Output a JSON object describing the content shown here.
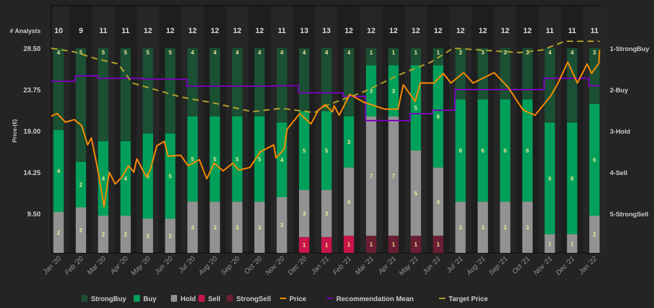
{
  "chart_data": {
    "type": "bar",
    "analysts_label": "# Analysts",
    "ylabel": "Price-(€)",
    "ylim": [
      5,
      29.5
    ],
    "y_ticks": [
      "28.50",
      "23.75",
      "19.00",
      "14.25",
      "9.50"
    ],
    "y_tick_values": [
      28.5,
      23.75,
      19,
      14.25,
      9.5
    ],
    "right_ticks": [
      "1-StrongBuy",
      "2-Buy",
      "3-Hold",
      "4-Sell",
      "5-StrongSell"
    ],
    "categories": [
      "Jan '20",
      "Feb '20",
      "Mar '20",
      "Apr '20",
      "May '20",
      "Jun '20",
      "Jul '20",
      "Aug '20",
      "Sep '20",
      "Oct '20",
      "Nov '20",
      "Dec '20",
      "Jan '21",
      "Feb '21",
      "Mar '21",
      "Apr '21",
      "May '21",
      "Jun '21",
      "Jul '21",
      "Aug '21",
      "Sep '21",
      "Oct '21",
      "Nov '21",
      "Dec '21",
      "Jan '22"
    ],
    "analysts": [
      10,
      9,
      11,
      11,
      12,
      12,
      12,
      12,
      12,
      12,
      11,
      13,
      13,
      12,
      12,
      12,
      12,
      12,
      12,
      12,
      12,
      12,
      11,
      11,
      11
    ],
    "series": [
      {
        "name": "StrongBuy",
        "color": "#1b5034",
        "values": [
          4,
          5,
          5,
          5,
          5,
          5,
          4,
          4,
          4,
          4,
          4,
          4,
          4,
          4,
          1,
          1,
          1,
          1,
          3,
          3,
          3,
          3,
          4,
          4,
          3
        ]
      },
      {
        "name": "Buy",
        "color": "#00a05a",
        "values": [
          4,
          2,
          4,
          4,
          5,
          5,
          5,
          5,
          5,
          5,
          4,
          5,
          5,
          3,
          3,
          3,
          5,
          6,
          6,
          6,
          6,
          6,
          6,
          6,
          6
        ]
      },
      {
        "name": "Hold",
        "color": "#929292",
        "values": [
          2,
          2,
          2,
          2,
          2,
          2,
          3,
          3,
          3,
          3,
          3,
          3,
          3,
          4,
          7,
          7,
          5,
          4,
          3,
          3,
          3,
          3,
          1,
          1,
          2
        ]
      },
      {
        "name": "Sell",
        "color": "#c8154a",
        "values": [
          0,
          0,
          0,
          0,
          0,
          0,
          0,
          0,
          0,
          0,
          0,
          1,
          1,
          1,
          0,
          0,
          0,
          0,
          0,
          0,
          0,
          0,
          0,
          0,
          0
        ]
      },
      {
        "name": "StrongSell",
        "color": "#6b1e32",
        "values": [
          0,
          0,
          0,
          0,
          0,
          0,
          0,
          0,
          0,
          0,
          0,
          0,
          0,
          0,
          1,
          1,
          1,
          1,
          0,
          0,
          0,
          0,
          0,
          0,
          0
        ]
      }
    ],
    "price": {
      "name": "Price",
      "color": "#ff8c00",
      "points": [
        [
          "2020-01-01",
          20.7
        ],
        [
          "2020-01-09",
          21.0
        ],
        [
          "2020-01-20",
          20.0
        ],
        [
          "2020-02-02",
          20.3
        ],
        [
          "2020-02-12",
          19.6
        ],
        [
          "2020-02-20",
          17.4
        ],
        [
          "2020-02-25",
          18.2
        ],
        [
          "2020-03-03",
          14.8
        ],
        [
          "2020-03-12",
          10.3
        ],
        [
          "2020-03-19",
          14.25
        ],
        [
          "2020-03-27",
          12.9
        ],
        [
          "2020-04-06",
          13.7
        ],
        [
          "2020-04-15",
          15.0
        ],
        [
          "2020-04-22",
          14.25
        ],
        [
          "2020-04-26",
          15.8
        ],
        [
          "2020-05-09",
          13.7
        ],
        [
          "2020-05-14",
          14.5
        ],
        [
          "2020-05-23",
          17.3
        ],
        [
          "2020-06-03",
          17.8
        ],
        [
          "2020-06-08",
          16.1
        ],
        [
          "2020-06-25",
          16.2
        ],
        [
          "2020-07-05",
          15.0
        ],
        [
          "2020-07-20",
          15.7
        ],
        [
          "2020-07-30",
          13.5
        ],
        [
          "2020-08-10",
          15.3
        ],
        [
          "2020-08-22",
          14.4
        ],
        [
          "2020-09-05",
          15.3
        ],
        [
          "2020-09-13",
          14.5
        ],
        [
          "2020-09-28",
          14.8
        ],
        [
          "2020-10-12",
          16.6
        ],
        [
          "2020-10-30",
          17.4
        ],
        [
          "2020-11-03",
          15.9
        ],
        [
          "2020-11-14",
          16.9
        ],
        [
          "2020-11-18",
          19.2
        ],
        [
          "2020-12-05",
          21.0
        ],
        [
          "2020-12-20",
          19.8
        ],
        [
          "2020-12-30",
          21.4
        ],
        [
          "2021-01-09",
          22.0
        ],
        [
          "2021-01-19",
          21.2
        ],
        [
          "2021-01-21",
          21.9
        ],
        [
          "2021-01-28",
          20.8
        ],
        [
          "2021-02-12",
          23.2
        ],
        [
          "2021-03-01",
          22.3
        ],
        [
          "2021-03-29",
          21.5
        ],
        [
          "2021-04-17",
          21.5
        ],
        [
          "2021-04-24",
          24.3
        ],
        [
          "2021-05-10",
          22.4
        ],
        [
          "2021-05-17",
          24.5
        ],
        [
          "2021-06-05",
          24.5
        ],
        [
          "2021-06-18",
          25.6
        ],
        [
          "2021-06-28",
          24.5
        ],
        [
          "2021-07-15",
          25.7
        ],
        [
          "2021-07-28",
          24.5
        ],
        [
          "2021-08-26",
          25.7
        ],
        [
          "2021-09-15",
          24.0
        ],
        [
          "2021-10-05",
          21.4
        ],
        [
          "2021-10-21",
          20.8
        ],
        [
          "2021-11-12",
          23.0
        ],
        [
          "2021-11-22",
          24.5
        ],
        [
          "2021-12-05",
          26.9
        ],
        [
          "2021-12-18",
          24.5
        ],
        [
          "2021-12-31",
          26.7
        ],
        [
          "2022-01-07",
          25.6
        ],
        [
          "2022-01-17",
          26.8
        ],
        [
          "2022-01-31",
          28.3
        ]
      ]
    },
    "recommendation_mean": {
      "name": "Recommendation Mean",
      "color": "#7a00b8"
    },
    "target_price": {
      "name": "Target Price",
      "color": "#b5a52a",
      "points": [
        [
          "2020-01-01",
          28.5
        ],
        [
          "2020-02-01",
          28.1
        ],
        [
          "2020-03-01",
          27.3
        ],
        [
          "2020-04-01",
          26.7
        ],
        [
          "2020-04-20",
          24.5
        ],
        [
          "2020-06-25",
          22.9
        ],
        [
          "2020-08-10",
          22.2
        ],
        [
          "2020-10-01",
          21.2
        ],
        [
          "2020-11-10",
          21.6
        ],
        [
          "2020-12-25",
          21.1
        ],
        [
          "2021-01-10",
          21.9
        ],
        [
          "2021-03-01",
          23.5
        ],
        [
          "2021-04-20",
          25.5
        ],
        [
          "2021-06-01",
          26.9
        ],
        [
          "2021-07-01",
          28.5
        ],
        [
          "2021-10-01",
          28.0
        ],
        [
          "2021-11-01",
          28.3
        ],
        [
          "2021-12-01",
          29.3
        ],
        [
          "2022-01-31",
          29.3
        ]
      ]
    },
    "legend": [
      "StrongBuy",
      "Buy",
      "Hold",
      "Sell",
      "StrongSell",
      "Price",
      "Recommendation Mean",
      "Target Price"
    ],
    "legend_position": "bottom"
  }
}
